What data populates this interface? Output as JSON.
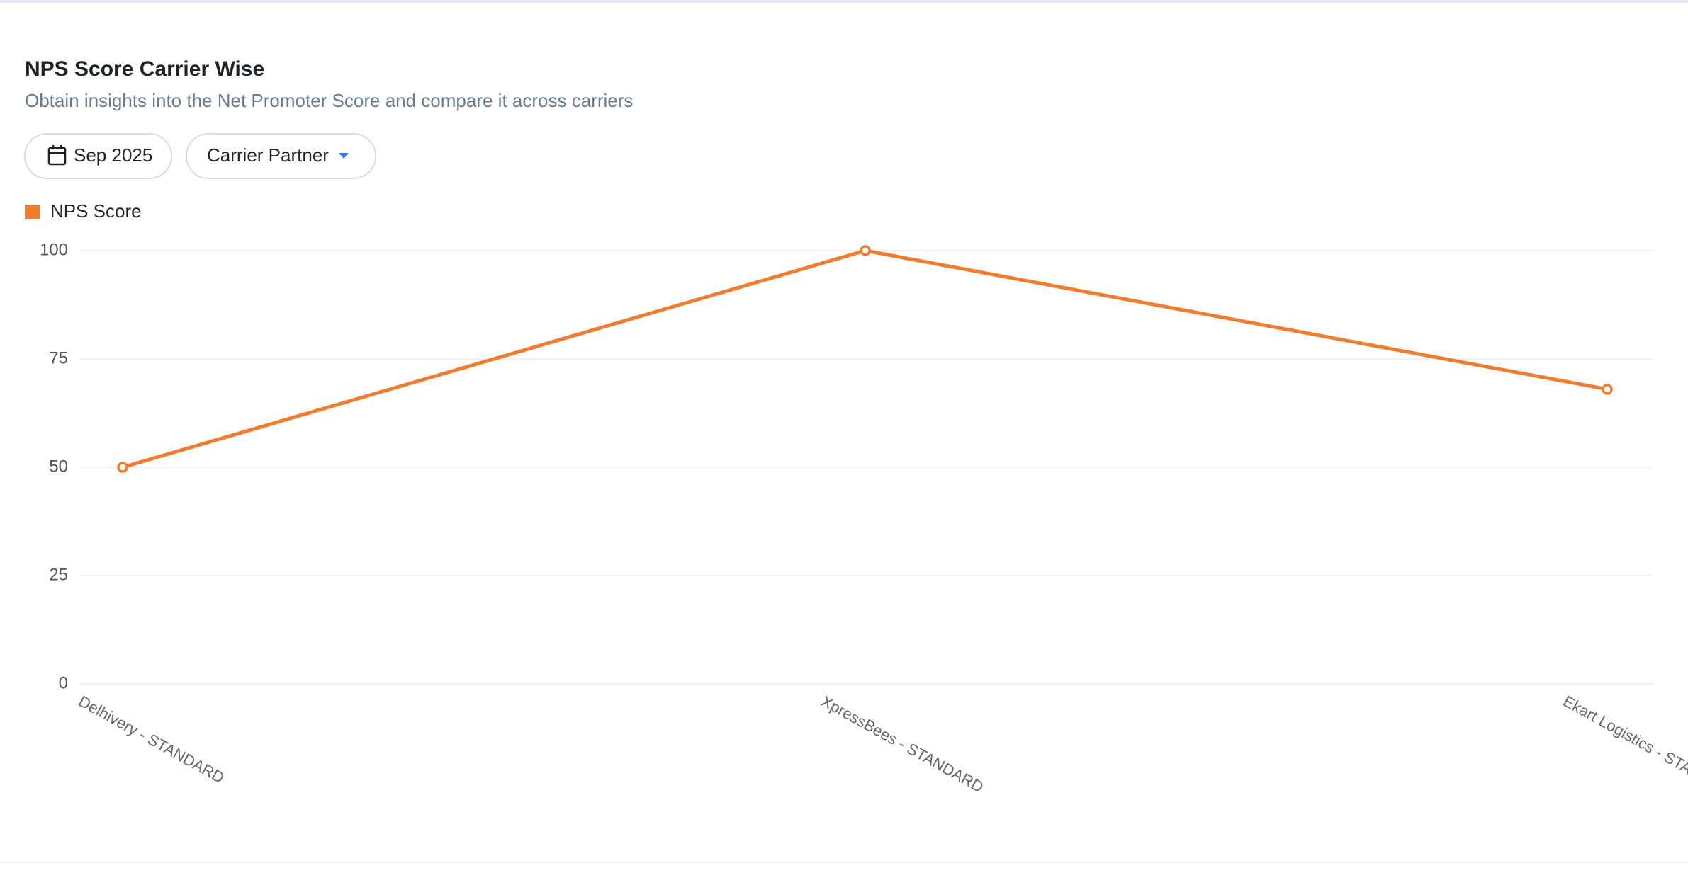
{
  "chart_data": {
    "type": "line",
    "title": "NPS Score Carrier Wise",
    "subtitle": "Obtain insights into the Net Promoter Score and compare it across carriers",
    "categories": [
      "Delhivery - STANDARD",
      "XpressBees - STANDARD",
      "Ekart Logistics - STANDARD"
    ],
    "series": [
      {
        "name": "NPS Score",
        "color": "#f07c30",
        "values": [
          50,
          100,
          68
        ]
      }
    ],
    "ylim": [
      0,
      100
    ],
    "yticks": [
      0,
      25,
      50,
      75,
      100
    ],
    "grid": true
  },
  "filters": [
    "Sep 2025",
    "Carrier Partner"
  ]
}
